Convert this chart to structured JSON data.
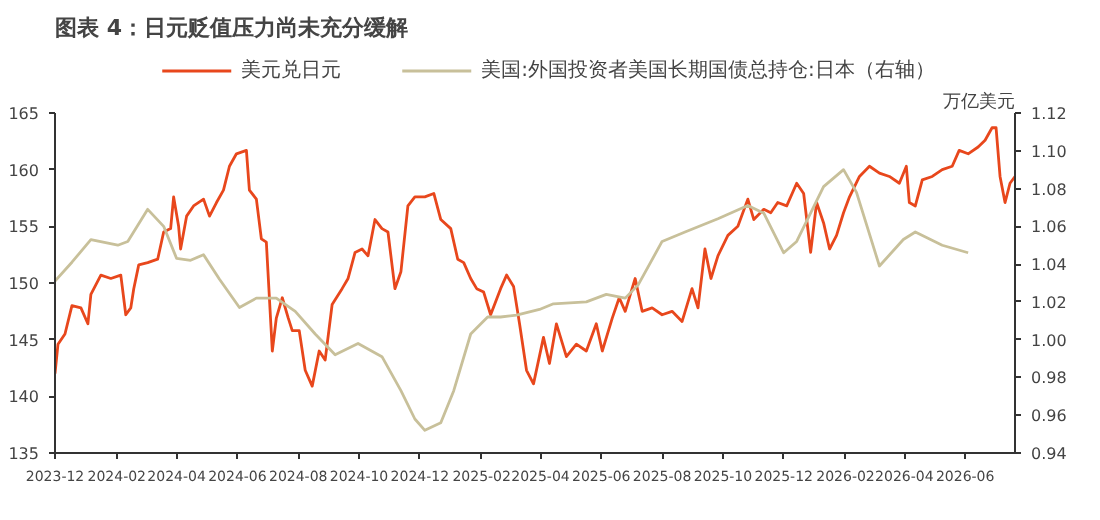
{
  "chart_data": {
    "type": "line",
    "title": "图表 4：日元贬值压力尚未充分缓解",
    "y2label": "万亿美元",
    "legend": "top",
    "grid": false,
    "xlim": [
      "2023-12-01",
      "2026-07-21"
    ],
    "ylim": [
      135,
      165
    ],
    "yticks": [
      135,
      140,
      145,
      150,
      155,
      160,
      165
    ],
    "y2lim": [
      0.94,
      1.12
    ],
    "y2ticks": [
      {
        "value": 0.94,
        "label": "0.94"
      },
      {
        "value": 0.96,
        "label": "0.96"
      },
      {
        "value": 0.98,
        "label": "0.98"
      },
      {
        "value": 1.0,
        "label": "1.00"
      },
      {
        "value": 1.02,
        "label": "1.02"
      },
      {
        "value": 1.04,
        "label": "1.04"
      },
      {
        "value": 1.06,
        "label": "1.06"
      },
      {
        "value": 1.08,
        "label": "1.08"
      },
      {
        "value": 1.1,
        "label": "1.10"
      },
      {
        "value": 1.12,
        "label": "1.12"
      }
    ],
    "xticks": [
      "2023-12",
      "2024-02",
      "2024-04",
      "2024-06",
      "2024-08",
      "2024-10",
      "2024-12",
      "2025-02",
      "2025-04",
      "2025-06",
      "2025-08",
      "2025-10",
      "2025-12",
      "2026-02",
      "2026-04",
      "2026-06"
    ],
    "series": [
      {
        "name": "美元兑日元",
        "color": "#e8471c",
        "x": [
          "2023-12-01",
          "2023-12-04",
          "2023-12-11",
          "2023-12-18",
          "2023-12-27",
          "2024-01-03",
          "2024-01-06",
          "2024-01-16",
          "2024-01-26",
          "2024-02-05",
          "2024-02-10",
          "2024-02-15",
          "2024-02-18",
          "2024-02-23",
          "2024-03-03",
          "2024-03-13",
          "2024-03-19",
          "2024-03-26",
          "2024-03-29",
          "2024-04-03",
          "2024-04-05",
          "2024-04-11",
          "2024-04-18",
          "2024-04-28",
          "2024-05-04",
          "2024-05-11",
          "2024-05-18",
          "2024-05-24",
          "2024-05-31",
          "2024-06-10",
          "2024-06-13",
          "2024-06-20",
          "2024-06-25",
          "2024-06-30",
          "2024-07-06",
          "2024-07-10",
          "2024-07-16",
          "2024-07-22",
          "2024-07-26",
          "2024-08-02",
          "2024-08-08",
          "2024-08-15",
          "2024-08-22",
          "2024-08-28",
          "2024-09-04",
          "2024-09-14",
          "2024-09-20",
          "2024-09-27",
          "2024-10-04",
          "2024-10-10",
          "2024-10-17",
          "2024-10-24",
          "2024-10-30",
          "2024-11-06",
          "2024-11-12",
          "2024-11-19",
          "2024-11-26",
          "2024-12-06",
          "2024-12-15",
          "2024-12-22",
          "2025-01-01",
          "2025-01-08",
          "2025-01-14",
          "2025-01-21",
          "2025-01-27",
          "2025-02-03",
          "2025-02-10",
          "2025-02-20",
          "2025-02-26",
          "2025-03-05",
          "2025-03-11",
          "2025-03-18",
          "2025-03-25",
          "2025-04-04",
          "2025-04-10",
          "2025-04-17",
          "2025-04-27",
          "2025-05-07",
          "2025-05-17",
          "2025-05-27",
          "2025-06-02",
          "2025-06-12",
          "2025-06-19",
          "2025-06-25",
          "2025-07-05",
          "2025-07-12",
          "2025-07-22",
          "2025-08-01",
          "2025-08-11",
          "2025-08-21",
          "2025-08-31",
          "2025-09-06",
          "2025-09-13",
          "2025-09-19",
          "2025-09-26",
          "2025-10-06",
          "2025-10-16",
          "2025-10-26",
          "2025-11-01",
          "2025-11-11",
          "2025-11-18",
          "2025-11-25",
          "2025-12-04",
          "2025-12-14",
          "2025-12-21",
          "2025-12-28",
          "2026-01-03",
          "2026-01-10",
          "2026-01-16",
          "2026-01-23",
          "2026-01-30",
          "2026-02-05",
          "2026-02-15",
          "2026-02-25",
          "2026-03-07",
          "2026-03-17",
          "2026-03-27",
          "2026-04-03",
          "2026-04-06",
          "2026-04-12",
          "2026-04-19",
          "2026-04-29",
          "2026-05-09",
          "2026-05-19",
          "2026-05-26",
          "2026-06-04",
          "2026-06-14",
          "2026-06-21",
          "2026-06-28",
          "2026-07-02",
          "2026-07-06",
          "2026-07-11",
          "2026-07-16",
          "2026-07-21"
        ],
        "values": [
          142.0,
          144.6,
          145.5,
          148.0,
          147.8,
          146.4,
          149.0,
          150.7,
          150.4,
          150.7,
          147.2,
          147.8,
          149.5,
          151.6,
          151.8,
          152.1,
          154.5,
          154.8,
          157.6,
          155.0,
          153.0,
          155.9,
          156.8,
          157.4,
          155.9,
          157.1,
          158.2,
          160.3,
          161.4,
          161.7,
          158.2,
          157.4,
          153.9,
          153.6,
          144.0,
          146.9,
          148.7,
          146.9,
          145.8,
          145.8,
          142.3,
          140.9,
          144.0,
          143.2,
          148.1,
          149.5,
          150.4,
          152.7,
          153.0,
          152.4,
          155.6,
          154.8,
          154.5,
          149.5,
          151.0,
          156.8,
          157.6,
          157.6,
          157.9,
          155.6,
          154.8,
          152.1,
          151.8,
          150.4,
          149.5,
          149.2,
          147.2,
          149.5,
          150.7,
          149.7,
          146.4,
          142.3,
          141.1,
          145.2,
          142.9,
          146.4,
          143.5,
          144.6,
          144.0,
          146.4,
          144.0,
          146.9,
          148.7,
          147.5,
          150.4,
          147.5,
          147.8,
          147.2,
          147.5,
          146.6,
          149.5,
          147.8,
          153.0,
          150.4,
          152.4,
          154.2,
          155.0,
          157.4,
          155.6,
          156.5,
          156.2,
          157.1,
          156.8,
          158.8,
          157.9,
          152.7,
          157.1,
          155.3,
          153.0,
          154.2,
          156.2,
          157.6,
          159.4,
          160.3,
          159.7,
          159.4,
          158.8,
          160.3,
          157.1,
          156.8,
          159.1,
          159.4,
          160.0,
          160.3,
          161.7,
          161.4,
          162.0,
          162.6,
          163.7,
          163.7,
          159.4,
          157.1,
          158.8,
          159.4
        ]
      },
      {
        "name": "美国:外国投资者美国长期国债总持仓:日本（右轴）",
        "color": "#c8c09a",
        "axis": "y2",
        "x": [
          "2023-12-01",
          "2023-12-18",
          "2024-01-06",
          "2024-02-02",
          "2024-02-12",
          "2024-03-03",
          "2024-03-19",
          "2024-04-01",
          "2024-04-15",
          "2024-04-28",
          "2024-05-14",
          "2024-06-03",
          "2024-06-20",
          "2024-07-10",
          "2024-07-29",
          "2024-08-18",
          "2024-09-07",
          "2024-09-30",
          "2024-10-24",
          "2024-11-12",
          "2024-11-26",
          "2024-12-06",
          "2024-12-22",
          "2025-01-04",
          "2025-01-21",
          "2025-02-07",
          "2025-02-20",
          "2025-03-08",
          "2025-03-31",
          "2025-04-14",
          "2025-05-17",
          "2025-06-06",
          "2025-06-25",
          "2025-07-08",
          "2025-08-01",
          "2025-08-24",
          "2025-09-26",
          "2025-10-26",
          "2025-11-11",
          "2025-12-01",
          "2025-12-14",
          "2026-01-10",
          "2026-01-30",
          "2026-02-12",
          "2026-03-07",
          "2026-03-31",
          "2026-04-12",
          "2026-05-09",
          "2026-06-04"
        ],
        "values": [
          1.031,
          1.041,
          1.053,
          1.05,
          1.052,
          1.069,
          1.06,
          1.043,
          1.042,
          1.045,
          1.032,
          1.017,
          1.022,
          1.022,
          1.015,
          1.003,
          0.992,
          0.998,
          0.991,
          0.973,
          0.958,
          0.952,
          0.956,
          0.973,
          1.003,
          1.012,
          1.012,
          1.013,
          1.016,
          1.019,
          1.02,
          1.024,
          1.022,
          1.029,
          1.052,
          1.057,
          1.064,
          1.071,
          1.067,
          1.046,
          1.052,
          1.081,
          1.09,
          1.078,
          1.039,
          1.053,
          1.057,
          1.05,
          1.046
        ]
      }
    ]
  }
}
